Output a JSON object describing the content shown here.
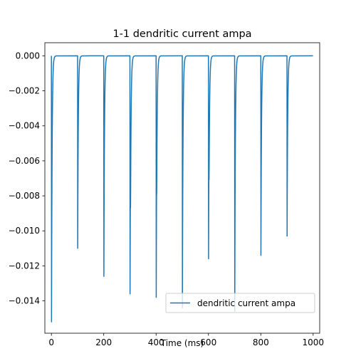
{
  "chart_data": {
    "type": "line",
    "title": "1-1 dendritic current ampa",
    "xlabel": "Time (ms)",
    "ylabel": "",
    "xlim": [
      -25,
      1025
    ],
    "ylim": [
      -0.01585,
      0.00075
    ],
    "xticks": [
      0,
      200,
      400,
      600,
      800,
      1000
    ],
    "xtick_labels": [
      "0",
      "200",
      "400",
      "600",
      "800",
      "1000"
    ],
    "yticks": [
      0.0,
      -0.002,
      -0.004,
      -0.006,
      -0.008,
      -0.01,
      -0.012,
      -0.014
    ],
    "ytick_labels": [
      "0.000",
      "−0.002",
      "−0.004",
      "−0.006",
      "−0.008",
      "−0.010",
      "−0.012",
      "−0.014"
    ],
    "grid": false,
    "legend": {
      "position": "lower right",
      "entries": [
        "dendritic current ampa"
      ]
    },
    "series": [
      {
        "name": "dendritic current ampa",
        "color": "#1f77b4",
        "spikes": [
          {
            "t": 0,
            "peak": -0.0152,
            "secondary": null
          },
          {
            "t": 100,
            "peak": -0.011,
            "secondary": null
          },
          {
            "t": 200,
            "peak": -0.0126,
            "secondary": null
          },
          {
            "t": 300,
            "peak": -0.0136,
            "secondary": -0.0041
          },
          {
            "t": 400,
            "peak": -0.0138,
            "secondary": -0.0026
          },
          {
            "t": 500,
            "peak": -0.0144,
            "secondary": null
          },
          {
            "t": 600,
            "peak": -0.0116,
            "secondary": -0.003
          },
          {
            "t": 700,
            "peak": -0.0146,
            "secondary": null
          },
          {
            "t": 800,
            "peak": -0.0114,
            "secondary": null
          },
          {
            "t": 900,
            "peak": -0.0103,
            "secondary": null
          }
        ],
        "baseline": 0.0,
        "x_end": 1000
      }
    ]
  }
}
